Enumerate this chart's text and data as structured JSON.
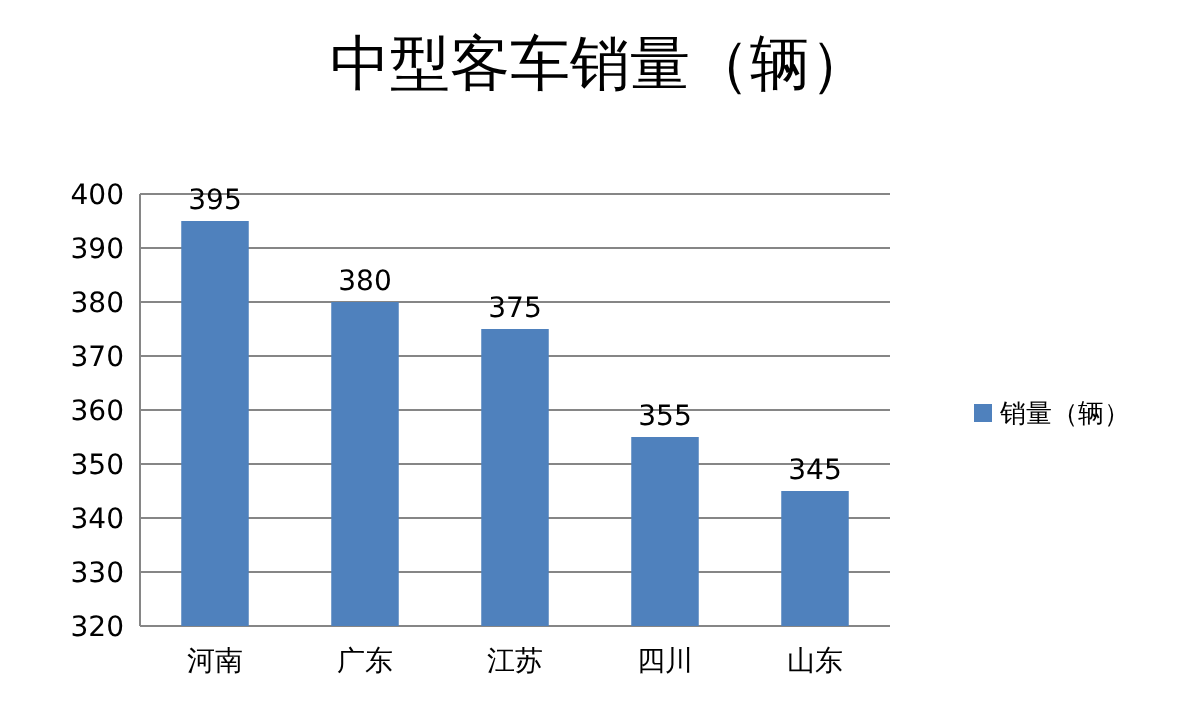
{
  "chart_data": {
    "type": "bar",
    "title": "中型客车销量（辆）",
    "categories": [
      "河南",
      "广东",
      "江苏",
      "四川",
      "山东"
    ],
    "series": [
      {
        "name": "销量（辆）",
        "color": "#4f81bd",
        "values": [
          395,
          380,
          375,
          355,
          345
        ]
      }
    ],
    "ylim": [
      320,
      400
    ],
    "yticks": [
      320,
      330,
      340,
      350,
      360,
      370,
      380,
      390,
      400
    ],
    "grid": "y",
    "legend": "right",
    "data_labels": true
  }
}
